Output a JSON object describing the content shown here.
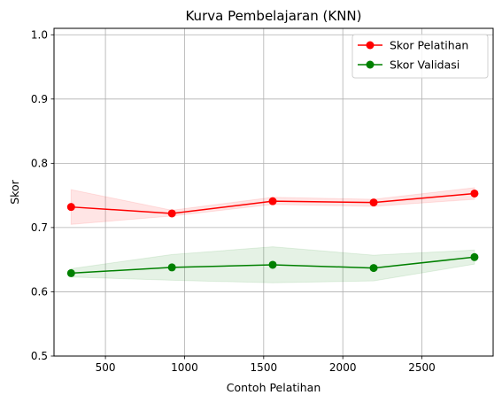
{
  "chart_data": {
    "type": "line",
    "title": "Kurva Pembelajaran (KNN)",
    "xlabel": "Contoh Pelatihan",
    "ylabel": "Skor",
    "xlim": [
      175,
      2950
    ],
    "ylim": [
      0.5,
      1.01
    ],
    "xticks": [
      500,
      1000,
      1500,
      2000,
      2500
    ],
    "xtick_labels": [
      "500",
      "1000",
      "1500",
      "2000",
      "2500"
    ],
    "yticks": [
      0.5,
      0.6,
      0.7,
      0.8,
      0.9,
      1.0
    ],
    "ytick_labels": [
      "0.5",
      "0.6",
      "0.7",
      "0.8",
      "0.9",
      "1.0"
    ],
    "grid": true,
    "legend_position": "top-right",
    "x": [
      283,
      920,
      1557,
      2195,
      2832
    ],
    "series": [
      {
        "name": "Skor Pelatihan",
        "color": "#ff0000",
        "marker": "circle",
        "values": [
          0.732,
          0.722,
          0.741,
          0.739,
          0.753
        ],
        "band_lower": [
          0.705,
          0.718,
          0.736,
          0.733,
          0.744
        ],
        "band_upper": [
          0.759,
          0.727,
          0.747,
          0.744,
          0.762
        ]
      },
      {
        "name": "Skor Validasi",
        "color": "#008000",
        "marker": "circle",
        "values": [
          0.629,
          0.638,
          0.642,
          0.637,
          0.654
        ],
        "band_lower": [
          0.623,
          0.618,
          0.614,
          0.617,
          0.643
        ],
        "band_upper": [
          0.636,
          0.658,
          0.67,
          0.657,
          0.665
        ]
      }
    ]
  }
}
